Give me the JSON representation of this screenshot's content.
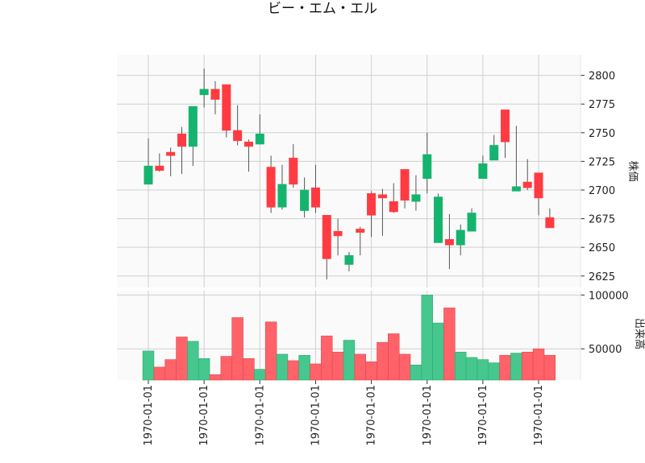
{
  "title": "ビー・エム・エル",
  "colors": {
    "up": "#14b46e",
    "down": "#ff3b41",
    "up_volume": "#46c78d",
    "down_volume": "#ff6369",
    "panel_bg": "#fafafa",
    "grid": "#d0d0d0",
    "wick": "#555555"
  },
  "chart_data": [
    {
      "type": "candlestick",
      "ylabel": "株価",
      "ylim": [
        2615,
        2818
      ],
      "yticks": [
        2625,
        2650,
        2675,
        2700,
        2725,
        2750,
        2775,
        2800
      ],
      "grid": true,
      "x_tick_labels": [
        "1970-01-01",
        "1970-01-01",
        "1970-01-01",
        "1970-01-01",
        "1970-01-01",
        "1970-01-01",
        "1970-01-01",
        "1970-01-01"
      ],
      "x_tick_index": [
        0,
        5,
        10,
        15,
        20,
        25,
        30,
        35
      ],
      "candles": [
        {
          "open": 2705,
          "high": 2745,
          "low": 2705,
          "close": 2721
        },
        {
          "open": 2721,
          "high": 2732,
          "low": 2716,
          "close": 2717
        },
        {
          "open": 2733,
          "high": 2737,
          "low": 2712,
          "close": 2730
        },
        {
          "open": 2749,
          "high": 2755,
          "low": 2714,
          "close": 2738
        },
        {
          "open": 2738,
          "high": 2773,
          "low": 2721,
          "close": 2773
        },
        {
          "open": 2783,
          "high": 2806,
          "low": 2772,
          "close": 2788
        },
        {
          "open": 2788,
          "high": 2795,
          "low": 2766,
          "close": 2779
        },
        {
          "open": 2792,
          "high": 2792,
          "low": 2746,
          "close": 2752
        },
        {
          "open": 2752,
          "high": 2774,
          "low": 2739,
          "close": 2743
        },
        {
          "open": 2742,
          "high": 2744,
          "low": 2716,
          "close": 2738
        },
        {
          "open": 2740,
          "high": 2766,
          "low": 2740,
          "close": 2749
        },
        {
          "open": 2720,
          "high": 2730,
          "low": 2680,
          "close": 2685
        },
        {
          "open": 2685,
          "high": 2722,
          "low": 2683,
          "close": 2705
        },
        {
          "open": 2728,
          "high": 2740,
          "low": 2702,
          "close": 2705
        },
        {
          "open": 2682,
          "high": 2711,
          "low": 2676,
          "close": 2700
        },
        {
          "open": 2702,
          "high": 2722,
          "low": 2680,
          "close": 2685
        },
        {
          "open": 2678,
          "high": 2678,
          "low": 2622,
          "close": 2640
        },
        {
          "open": 2664,
          "high": 2675,
          "low": 2643,
          "close": 2660
        },
        {
          "open": 2635,
          "high": 2646,
          "low": 2629,
          "close": 2643
        },
        {
          "open": 2666,
          "high": 2668,
          "low": 2643,
          "close": 2663
        },
        {
          "open": 2697,
          "high": 2699,
          "low": 2659,
          "close": 2678
        },
        {
          "open": 2696,
          "high": 2701,
          "low": 2660,
          "close": 2693
        },
        {
          "open": 2690,
          "high": 2706,
          "low": 2680,
          "close": 2681
        },
        {
          "open": 2718,
          "high": 2718,
          "low": 2684,
          "close": 2691
        },
        {
          "open": 2690,
          "high": 2713,
          "low": 2682,
          "close": 2696
        },
        {
          "open": 2710,
          "high": 2750,
          "low": 2697,
          "close": 2731
        },
        {
          "open": 2654,
          "high": 2697,
          "low": 2654,
          "close": 2694
        },
        {
          "open": 2657,
          "high": 2679,
          "low": 2631,
          "close": 2652
        },
        {
          "open": 2652,
          "high": 2670,
          "low": 2643,
          "close": 2665
        },
        {
          "open": 2664,
          "high": 2684,
          "low": 2664,
          "close": 2680
        },
        {
          "open": 2710,
          "high": 2730,
          "low": 2710,
          "close": 2723
        },
        {
          "open": 2726,
          "high": 2748,
          "low": 2726,
          "close": 2739
        },
        {
          "open": 2770,
          "high": 2770,
          "low": 2728,
          "close": 2742
        },
        {
          "open": 2699,
          "high": 2756,
          "low": 2699,
          "close": 2703
        },
        {
          "open": 2707,
          "high": 2727,
          "low": 2700,
          "close": 2702
        },
        {
          "open": 2715,
          "high": 2715,
          "low": 2678,
          "close": 2693
        },
        {
          "open": 2676,
          "high": 2684,
          "low": 2667,
          "close": 2667
        }
      ]
    },
    {
      "type": "bar",
      "ylabel": "出来高",
      "ylim": [
        21000,
        104000
      ],
      "yticks": [
        50000,
        100000
      ],
      "grid": true,
      "values": [
        48000,
        33000,
        40000,
        61000,
        57000,
        41000,
        26000,
        43000,
        79000,
        41000,
        31000,
        75000,
        45000,
        39000,
        44000,
        36000,
        62000,
        47000,
        58000,
        45000,
        38000,
        56000,
        64000,
        45000,
        35000,
        100000,
        74000,
        88000,
        47000,
        42000,
        40000,
        37000,
        44000,
        46000,
        47000,
        50000,
        44000
      ]
    }
  ]
}
